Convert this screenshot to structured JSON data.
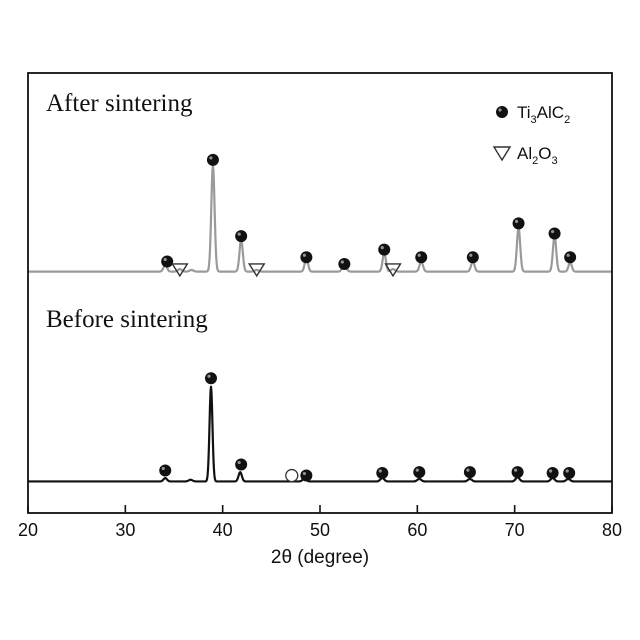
{
  "chart_data": {
    "type": "line",
    "xlabel": "2θ (degree)",
    "ylabel": "",
    "xlim": [
      20,
      80
    ],
    "x_ticks": [
      "20",
      "30",
      "40",
      "50",
      "60",
      "70",
      "80"
    ],
    "y_ticks": [],
    "grid": false,
    "legend_position": "top-right",
    "legend": [
      {
        "marker": "filled-circle",
        "base": "Ti",
        "sub1": "3",
        "mid": "AlC",
        "sub2": "2"
      },
      {
        "marker": "open-triangle",
        "base": "Al",
        "sub1": "2",
        "mid": "O",
        "sub2": "3"
      }
    ],
    "series": [
      {
        "label": "After sintering",
        "color": "#9a9a9a",
        "baseline": 4,
        "peaks": [
          {
            "x": 34.1,
            "y": 8,
            "w": 0.18
          },
          {
            "x": 35.6,
            "y": 3,
            "w": 0.2
          },
          {
            "x": 36.8,
            "y": 2,
            "w": 0.2
          },
          {
            "x": 39.0,
            "y": 125,
            "w": 0.17
          },
          {
            "x": 41.9,
            "y": 38,
            "w": 0.17
          },
          {
            "x": 43.5,
            "y": 2,
            "w": 0.2
          },
          {
            "x": 48.6,
            "y": 16,
            "w": 0.17
          },
          {
            "x": 52.5,
            "y": 9,
            "w": 0.2
          },
          {
            "x": 56.6,
            "y": 22,
            "w": 0.17
          },
          {
            "x": 57.5,
            "y": 3,
            "w": 0.2
          },
          {
            "x": 60.4,
            "y": 12,
            "w": 0.18
          },
          {
            "x": 65.7,
            "y": 12,
            "w": 0.18
          },
          {
            "x": 70.4,
            "y": 52,
            "w": 0.17
          },
          {
            "x": 74.1,
            "y": 42,
            "w": 0.17
          },
          {
            "x": 75.7,
            "y": 11,
            "w": 0.17
          }
        ],
        "markers": [
          {
            "type": "phase",
            "x": 34.3,
            "y": 16
          },
          {
            "type": "impurity",
            "x": 35.6,
            "y": 6
          },
          {
            "type": "phase",
            "x": 39.0,
            "y": 136
          },
          {
            "type": "phase",
            "x": 41.9,
            "y": 46
          },
          {
            "type": "impurity",
            "x": 43.5,
            "y": 6
          },
          {
            "type": "phase",
            "x": 48.6,
            "y": 21
          },
          {
            "type": "phase",
            "x": 52.5,
            "y": 13
          },
          {
            "type": "phase",
            "x": 56.6,
            "y": 30
          },
          {
            "type": "impurity",
            "x": 57.5,
            "y": 6
          },
          {
            "type": "phase",
            "x": 60.4,
            "y": 21
          },
          {
            "type": "phase",
            "x": 65.7,
            "y": 21
          },
          {
            "type": "phase",
            "x": 70.4,
            "y": 61
          },
          {
            "type": "phase",
            "x": 74.1,
            "y": 49
          },
          {
            "type": "phase",
            "x": 75.7,
            "y": 21
          }
        ]
      },
      {
        "label": "Before sintering",
        "color": "#111111",
        "baseline": 3,
        "peaks": [
          {
            "x": 34.1,
            "y": 4,
            "w": 0.18
          },
          {
            "x": 36.7,
            "y": 2,
            "w": 0.2
          },
          {
            "x": 38.8,
            "y": 112,
            "w": 0.15
          },
          {
            "x": 41.8,
            "y": 11,
            "w": 0.17
          },
          {
            "x": 48.4,
            "y": 3,
            "w": 0.2
          },
          {
            "x": 56.4,
            "y": 4,
            "w": 0.2
          },
          {
            "x": 60.2,
            "y": 3,
            "w": 0.2
          },
          {
            "x": 65.4,
            "y": 3,
            "w": 0.2
          },
          {
            "x": 70.3,
            "y": 5,
            "w": 0.2
          },
          {
            "x": 73.9,
            "y": 4,
            "w": 0.2
          },
          {
            "x": 75.5,
            "y": 3,
            "w": 0.2
          }
        ],
        "markers": [
          {
            "type": "phase",
            "x": 34.1,
            "y": 16
          },
          {
            "type": "phase",
            "x": 38.8,
            "y": 125
          },
          {
            "type": "phase",
            "x": 41.9,
            "y": 23
          },
          {
            "type": "open-circle",
            "x": 47.1,
            "y": 10
          },
          {
            "type": "phase",
            "x": 48.6,
            "y": 10
          },
          {
            "type": "phase",
            "x": 56.4,
            "y": 13
          },
          {
            "type": "phase",
            "x": 60.2,
            "y": 14
          },
          {
            "type": "phase",
            "x": 65.4,
            "y": 14
          },
          {
            "type": "phase",
            "x": 70.3,
            "y": 14
          },
          {
            "type": "phase",
            "x": 73.9,
            "y": 13
          },
          {
            "type": "phase",
            "x": 75.6,
            "y": 13
          }
        ]
      }
    ]
  }
}
